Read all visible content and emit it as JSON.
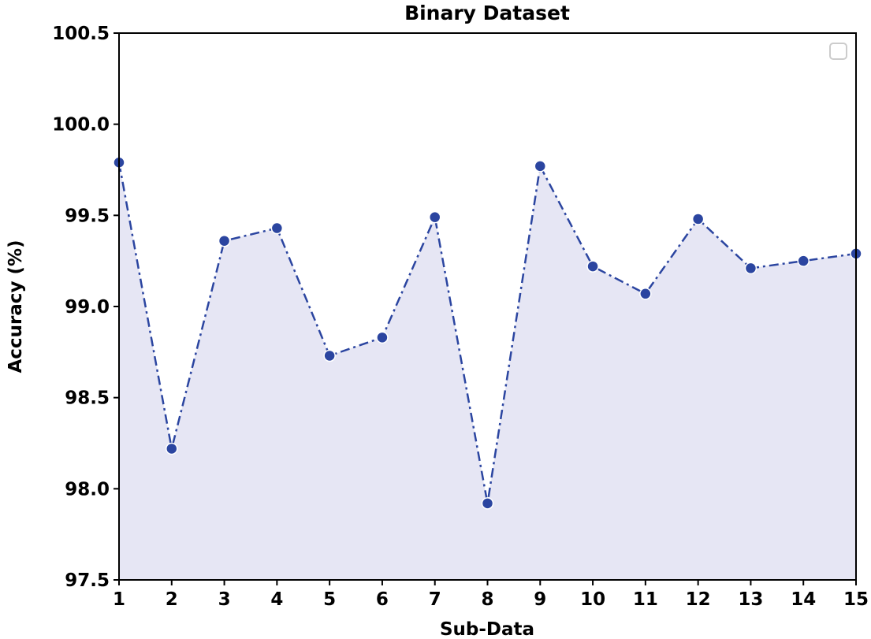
{
  "chart_data": {
    "type": "line",
    "title": "Binary Dataset",
    "xlabel": "Sub-Data",
    "ylabel": "Accuracy (%)",
    "x": [
      1,
      2,
      3,
      4,
      5,
      6,
      7,
      8,
      9,
      10,
      11,
      12,
      13,
      14,
      15
    ],
    "series": [
      {
        "name": "",
        "values": [
          99.79,
          98.22,
          99.36,
          99.43,
          98.73,
          98.83,
          99.49,
          97.92,
          99.77,
          99.22,
          99.07,
          99.48,
          99.21,
          99.25,
          99.29
        ],
        "line_style": "dash-dot",
        "marker": "circle",
        "fill_below": true
      }
    ],
    "xlim": [
      1,
      15
    ],
    "ylim": [
      97.5,
      100.5
    ],
    "x_ticks": [
      "1",
      "2",
      "3",
      "4",
      "5",
      "6",
      "7",
      "8",
      "9",
      "10",
      "11",
      "12",
      "13",
      "14",
      "15"
    ],
    "y_ticks": [
      "97.5",
      "98.0",
      "98.5",
      "99.0",
      "99.5",
      "100.0",
      "100.5"
    ],
    "grid": false,
    "legend": {
      "position": "upper right",
      "entries": []
    },
    "colors": {
      "line": "#2b45a0",
      "fill": "#e6e6f4",
      "axes": "#000000"
    }
  }
}
